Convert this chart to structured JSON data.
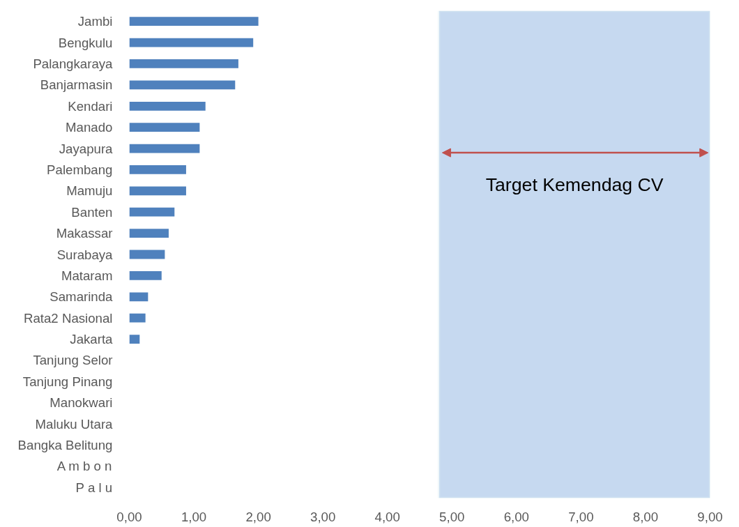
{
  "chart_data": {
    "type": "bar",
    "orientation": "horizontal",
    "categories": [
      "Jambi",
      "Bengkulu",
      "Palangkaraya",
      "Banjarmasin",
      "Kendari",
      "Manado",
      "Jayapura",
      "Palembang",
      "Mamuju",
      "Banten",
      "Makassar",
      "Surabaya",
      "Mataram",
      "Samarinda",
      "Rata2 Nasional",
      "Jakarta",
      "Tanjung Selor",
      "Tanjung Pinang",
      "Manokwari",
      "Maluku Utara",
      "Bangka Belitung",
      "A m b o n",
      "P a l u"
    ],
    "values": [
      2.0,
      1.92,
      1.69,
      1.64,
      1.18,
      1.09,
      1.09,
      0.88,
      0.88,
      0.7,
      0.61,
      0.55,
      0.5,
      0.29,
      0.25,
      0.16,
      0,
      0,
      0,
      0,
      0,
      0,
      0
    ],
    "color": "#4f81bd",
    "xlim": [
      0,
      9
    ],
    "xticks": [
      {
        "value": 0,
        "label": "0,00"
      },
      {
        "value": 1,
        "label": "1,00"
      },
      {
        "value": 2,
        "label": "2,00"
      },
      {
        "value": 3,
        "label": "3,00"
      },
      {
        "value": 4,
        "label": "4,00"
      },
      {
        "value": 5,
        "label": "5,00"
      },
      {
        "value": 6,
        "label": "6,00"
      },
      {
        "value": 7,
        "label": "7,00"
      },
      {
        "value": 8,
        "label": "8,00"
      },
      {
        "value": 9,
        "label": "9,00"
      }
    ],
    "bands": [
      {
        "axis": "x",
        "from": 4.8,
        "to": 9.0,
        "label": "Target Kemendag CV",
        "color": "#c6d9f0"
      }
    ],
    "grid": false
  }
}
